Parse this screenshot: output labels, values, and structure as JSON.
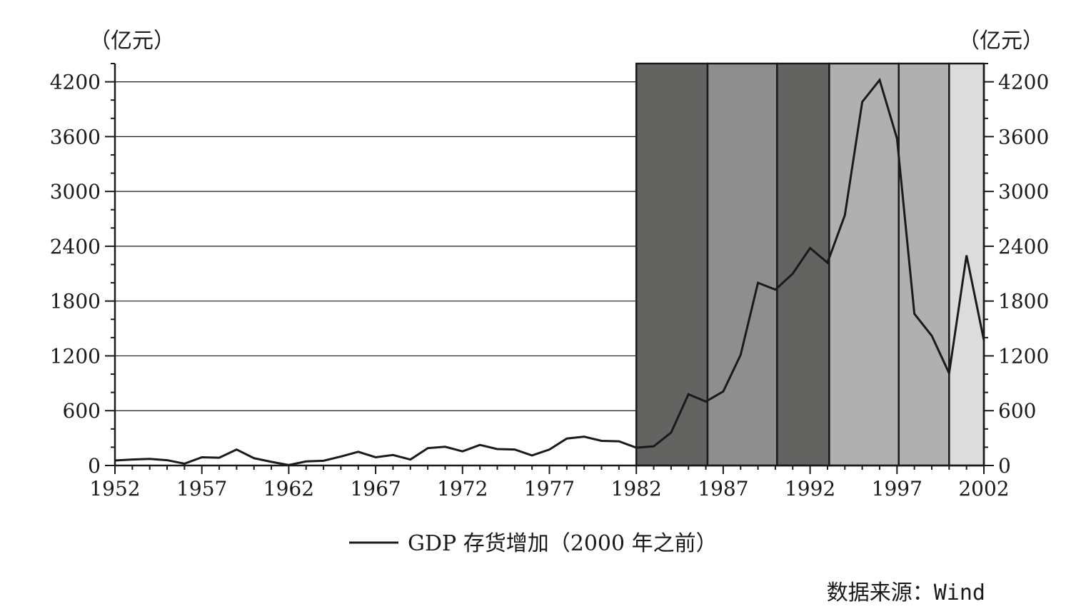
{
  "chart_data": {
    "type": "line",
    "title": "",
    "y_unit_left": "（亿元）",
    "y_unit_right": "（亿元）",
    "xlim": [
      1952,
      2002
    ],
    "ylim": [
      0,
      4400
    ],
    "x_ticks": [
      1952,
      1957,
      1962,
      1967,
      1972,
      1977,
      1982,
      1987,
      1992,
      1997,
      2002
    ],
    "x_tick_labels": [
      "1952",
      "1957",
      "1962",
      "1967",
      "1972",
      "1977",
      "1982",
      "1987",
      "1992",
      "1997",
      "2002"
    ],
    "y_ticks": [
      0,
      600,
      1200,
      1800,
      2400,
      3000,
      3600,
      4200
    ],
    "y_tick_labels": [
      "0",
      "600",
      "1200",
      "1800",
      "2400",
      "3000",
      "3600",
      "4200"
    ],
    "grid": "horizontal, left of 1982 only",
    "legend": "bottom-center",
    "shaded_periods": [
      {
        "start": 1982,
        "end": 1986.1,
        "color": "#636361"
      },
      {
        "start": 1986.1,
        "end": 1990.1,
        "color": "#8f8e8e"
      },
      {
        "start": 1990.1,
        "end": 1993.1,
        "color": "#636361"
      },
      {
        "start": 1993.1,
        "end": 1997.1,
        "color": "#b1b0b0"
      },
      {
        "start": 1997.1,
        "end": 2000,
        "color": "#b1b0b0"
      },
      {
        "start": 2000,
        "end": 2002,
        "color": "#dcdcdc"
      }
    ],
    "series": [
      {
        "name": "GDP 存货增加（2000 年之前）",
        "color": "#1a1a1a",
        "x": [
          1952,
          1953,
          1954,
          1955,
          1956,
          1957,
          1958,
          1959,
          1960,
          1961,
          1962,
          1963,
          1964,
          1965,
          1966,
          1967,
          1968,
          1969,
          1970,
          1971,
          1972,
          1973,
          1974,
          1975,
          1976,
          1977,
          1978,
          1979,
          1980,
          1981,
          1982,
          1983,
          1984,
          1985,
          1986,
          1987,
          1988,
          1989,
          1990,
          1991,
          1992,
          1993,
          1994,
          1995,
          1996,
          1997,
          1998,
          1999,
          2000,
          2001,
          2002
        ],
        "values": [
          55,
          65,
          72,
          58,
          20,
          90,
          85,
          175,
          80,
          40,
          5,
          45,
          52,
          98,
          150,
          90,
          115,
          65,
          190,
          205,
          155,
          225,
          180,
          175,
          110,
          175,
          295,
          315,
          270,
          265,
          195,
          210,
          360,
          780,
          700,
          810,
          1210,
          2000,
          1925,
          2100,
          2380,
          2220,
          2740,
          3980,
          4220,
          3580,
          1660,
          1420,
          1010,
          2300,
          1370
        ]
      }
    ]
  },
  "legend_label": "GDP 存货增加（2000 年之前）",
  "source": "数据来源：Wind"
}
